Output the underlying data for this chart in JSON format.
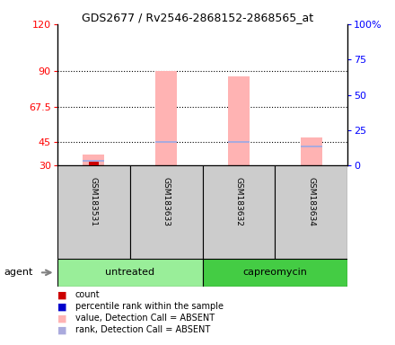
{
  "title": "GDS2677 / Rv2546-2868152-2868565_at",
  "samples": [
    "GSM183531",
    "GSM183633",
    "GSM183632",
    "GSM183634"
  ],
  "left_yticks": [
    30,
    45,
    67.5,
    90,
    120
  ],
  "right_yticks": [
    0,
    25,
    50,
    75,
    100
  ],
  "left_ylim": [
    30,
    120
  ],
  "pink_bar_values": [
    37,
    90,
    87,
    48
  ],
  "blue_marker_values": [
    33,
    45,
    45,
    42
  ],
  "red_bar_height": 1.5,
  "pink_color": "#ffb3b3",
  "blue_color": "#aaaadd",
  "red_color": "#cc0000",
  "darkblue_color": "#0000cc",
  "sample_box_color": "#cccccc",
  "untreated_color": "#99ee99",
  "capreomycin_color": "#44cc44",
  "group_spans": [
    {
      "label": "untreated",
      "start": 0,
      "end": 2
    },
    {
      "label": "capreomycin",
      "start": 2,
      "end": 4
    }
  ],
  "legend_items": [
    {
      "color": "#cc0000",
      "label": "count"
    },
    {
      "color": "#0000cc",
      "label": "percentile rank within the sample"
    },
    {
      "color": "#ffb3b3",
      "label": "value, Detection Call = ABSENT"
    },
    {
      "color": "#aaaadd",
      "label": "rank, Detection Call = ABSENT"
    }
  ]
}
